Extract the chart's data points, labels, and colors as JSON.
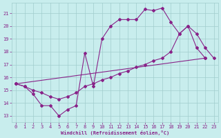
{
  "bg_color": "#c8eded",
  "grid_color": "#a0cccc",
  "line_color": "#882288",
  "xlabel": "Windchill (Refroidissement éolien,°C)",
  "xlim": [
    -0.5,
    23.5
  ],
  "ylim": [
    12.5,
    21.8
  ],
  "xticks": [
    0,
    1,
    2,
    3,
    4,
    5,
    6,
    7,
    8,
    9,
    10,
    11,
    12,
    13,
    14,
    15,
    16,
    17,
    18,
    19,
    20,
    21,
    22,
    23
  ],
  "yticks": [
    13,
    14,
    15,
    16,
    17,
    18,
    19,
    20,
    21
  ],
  "line1_x": [
    0,
    1,
    2,
    3,
    4,
    5,
    6,
    7,
    8,
    9,
    10,
    11,
    12,
    13,
    14,
    15,
    16,
    17,
    18,
    19,
    20,
    21,
    22
  ],
  "line1_y": [
    15.5,
    15.3,
    14.7,
    13.8,
    13.8,
    13.0,
    13.5,
    13.8,
    17.9,
    15.3,
    19.0,
    20.0,
    20.5,
    20.5,
    20.5,
    21.3,
    21.2,
    21.4,
    20.3,
    19.4,
    20.0,
    18.3,
    17.5
  ],
  "line2_x": [
    0,
    1,
    2,
    3,
    4,
    5,
    6,
    7,
    8,
    9,
    10,
    11,
    12,
    13,
    14,
    15,
    16,
    17,
    18,
    19,
    20,
    21,
    22,
    23
  ],
  "line2_y": [
    15.5,
    15.3,
    15.0,
    14.8,
    14.5,
    14.3,
    14.5,
    14.8,
    15.3,
    15.5,
    15.8,
    16.0,
    16.3,
    16.5,
    16.8,
    17.0,
    17.3,
    17.5,
    18.0,
    19.4,
    20.0,
    19.4,
    18.3,
    17.5
  ],
  "line3_x": [
    0,
    22
  ],
  "line3_y": [
    15.5,
    17.5
  ]
}
